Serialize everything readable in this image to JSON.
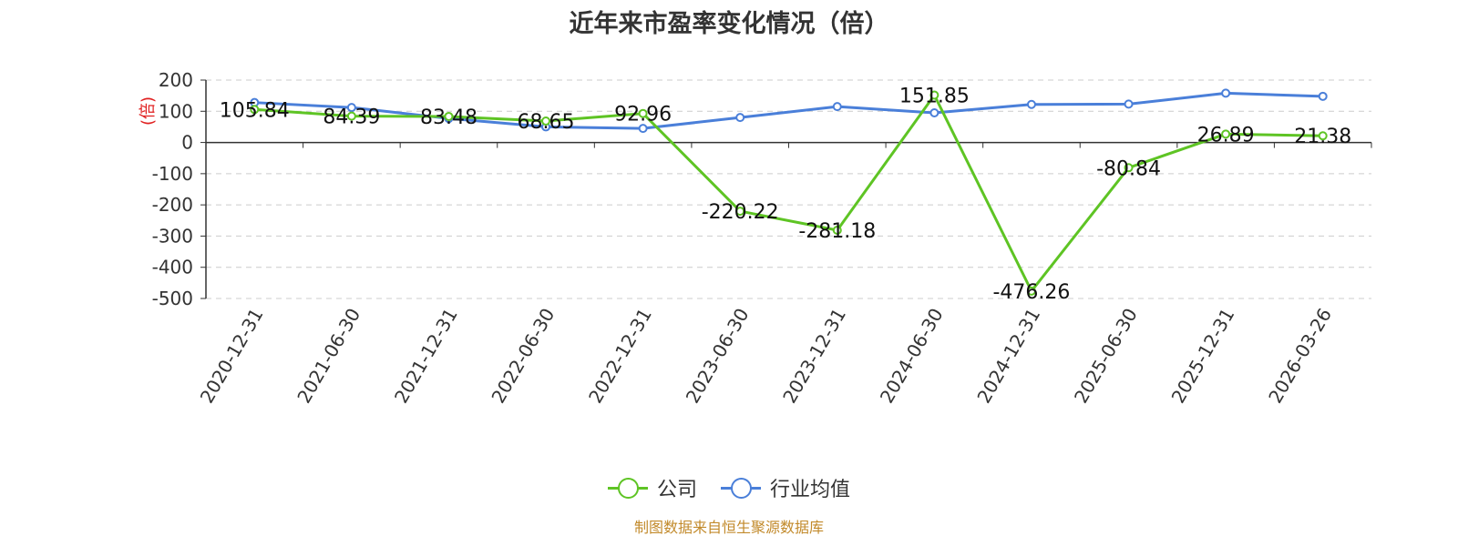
{
  "chart_data": {
    "type": "line",
    "title": "近年来市盈率变化情况（倍）",
    "ylabel": "(倍)",
    "categories": [
      "2020-12-31",
      "2021-06-30",
      "2021-12-31",
      "2022-06-30",
      "2022-12-31",
      "2023-06-30",
      "2023-12-31",
      "2024-06-30",
      "2024-12-31",
      "2025-06-30",
      "2025-12-31",
      "2026-03-26"
    ],
    "ylim": [
      -500,
      200
    ],
    "yticks": [
      "200",
      "100",
      "0",
      "-100",
      "-200",
      "-300",
      "-400",
      "-500"
    ],
    "grid": true,
    "legend_position": "bottom",
    "series": [
      {
        "name": "公司",
        "color": "#5ec424",
        "values": [
          105.84,
          84.39,
          83.48,
          68.65,
          92.96,
          -220.22,
          -281.18,
          151.85,
          -476.26,
          -80.84,
          26.89,
          21.38
        ],
        "labels": [
          "105.84",
          "84.39",
          "83.48",
          "68.65",
          "92.96",
          "-220.22",
          "-281.18",
          "151.85",
          "-476.26",
          "-80.84",
          "26.89",
          "21.38"
        ]
      },
      {
        "name": "行业均值",
        "color": "#4a7fd9",
        "values": [
          128,
          112,
          77,
          50,
          45,
          80,
          115,
          95,
          122,
          123,
          158,
          148
        ]
      }
    ]
  },
  "legend": {
    "company": "公司",
    "industry": "行业均值",
    "company_color": "#5ec424",
    "industry_color": "#4a7fd9"
  },
  "source": "制图数据来自恒生聚源数据库"
}
